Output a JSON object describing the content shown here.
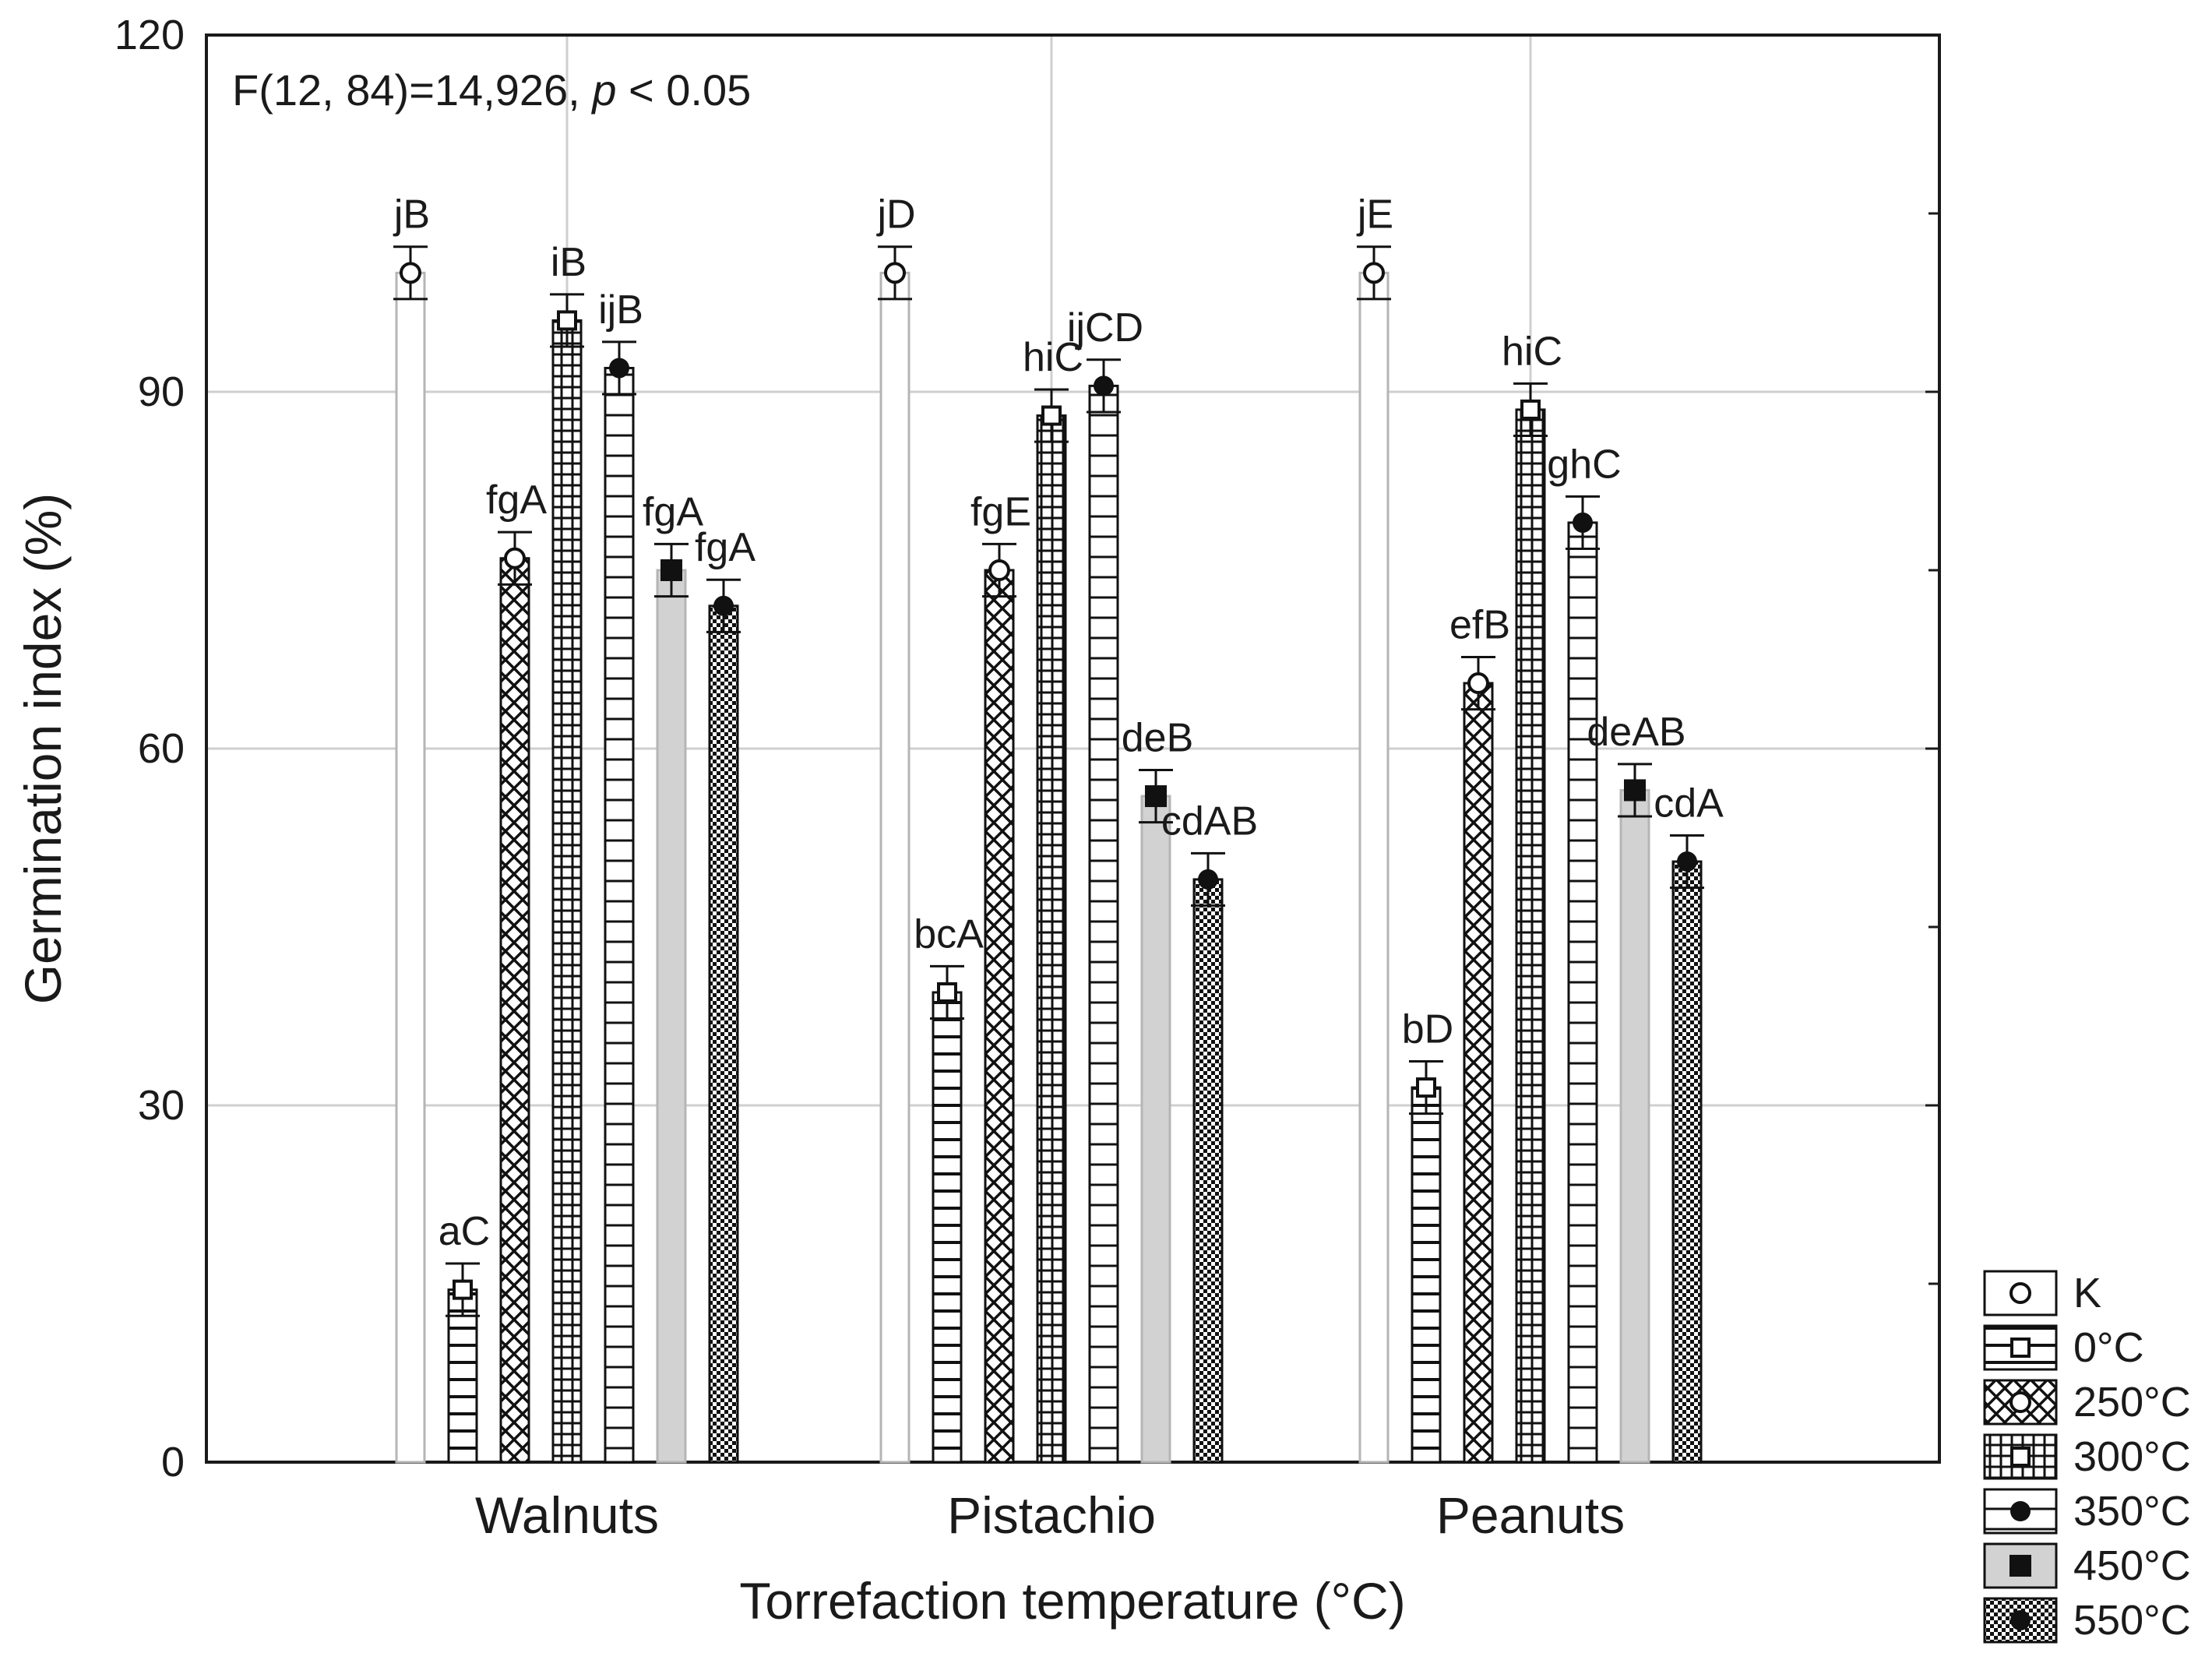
{
  "chart_data": {
    "type": "bar",
    "title": "",
    "annotation": {
      "prefix": "F(12, 84)=14,926, ",
      "p": "p",
      "suffix": " < 0.05"
    },
    "xlabel": "Torrefaction temperature (°C)",
    "ylabel": "Germination index (%)",
    "ylim": [
      0,
      120
    ],
    "yticks": [
      "0",
      "30",
      "60",
      "90",
      "120"
    ],
    "categories": [
      "Walnuts",
      "Pistachio",
      "Peanuts"
    ],
    "legend_position": "bottom-right outside",
    "series": [
      {
        "name": "K",
        "pattern": "plain",
        "marker": "circle-open",
        "values": [
          100,
          100,
          100
        ],
        "errors": [
          2.2,
          2.2,
          2.2
        ],
        "labels": [
          "jB",
          "jD",
          "jE"
        ]
      },
      {
        "name": "0°C",
        "pattern": "hlines",
        "marker": "square-open",
        "values": [
          14.5,
          39.5,
          31.5
        ],
        "errors": [
          2.2,
          2.2,
          2.2
        ],
        "labels": [
          "aC",
          "bcA",
          "bD"
        ]
      },
      {
        "name": "250°C",
        "pattern": "crosshatch",
        "marker": "circle-open",
        "values": [
          76,
          75,
          65.5
        ],
        "errors": [
          2.2,
          2.2,
          2.2
        ],
        "labels": [
          "fgA",
          "fgE",
          "efB"
        ]
      },
      {
        "name": "300°C",
        "pattern": "grid",
        "marker": "square-open",
        "values": [
          96,
          88,
          88.5
        ],
        "errors": [
          2.2,
          2.2,
          2.2
        ],
        "labels": [
          "iB",
          "hiC",
          "hiC"
        ]
      },
      {
        "name": "350°C",
        "pattern": "hlines-wide",
        "marker": "circle-filled",
        "values": [
          92,
          90.5,
          79
        ],
        "errors": [
          2.2,
          2.2,
          2.2
        ],
        "labels": [
          "ijB",
          "ijCD",
          "ghC"
        ]
      },
      {
        "name": "450°C",
        "pattern": "gray",
        "marker": "square-filled",
        "values": [
          75,
          56,
          56.5
        ],
        "errors": [
          2.2,
          2.2,
          2.2
        ],
        "labels": [
          "fgA",
          "deB",
          "deAB"
        ]
      },
      {
        "name": "550°C",
        "pattern": "checker",
        "marker": "circle-filled",
        "values": [
          72,
          49,
          50.5
        ],
        "errors": [
          2.2,
          2.2,
          2.2
        ],
        "labels": [
          "fgA",
          "cdAB",
          "cdA"
        ]
      }
    ]
  }
}
